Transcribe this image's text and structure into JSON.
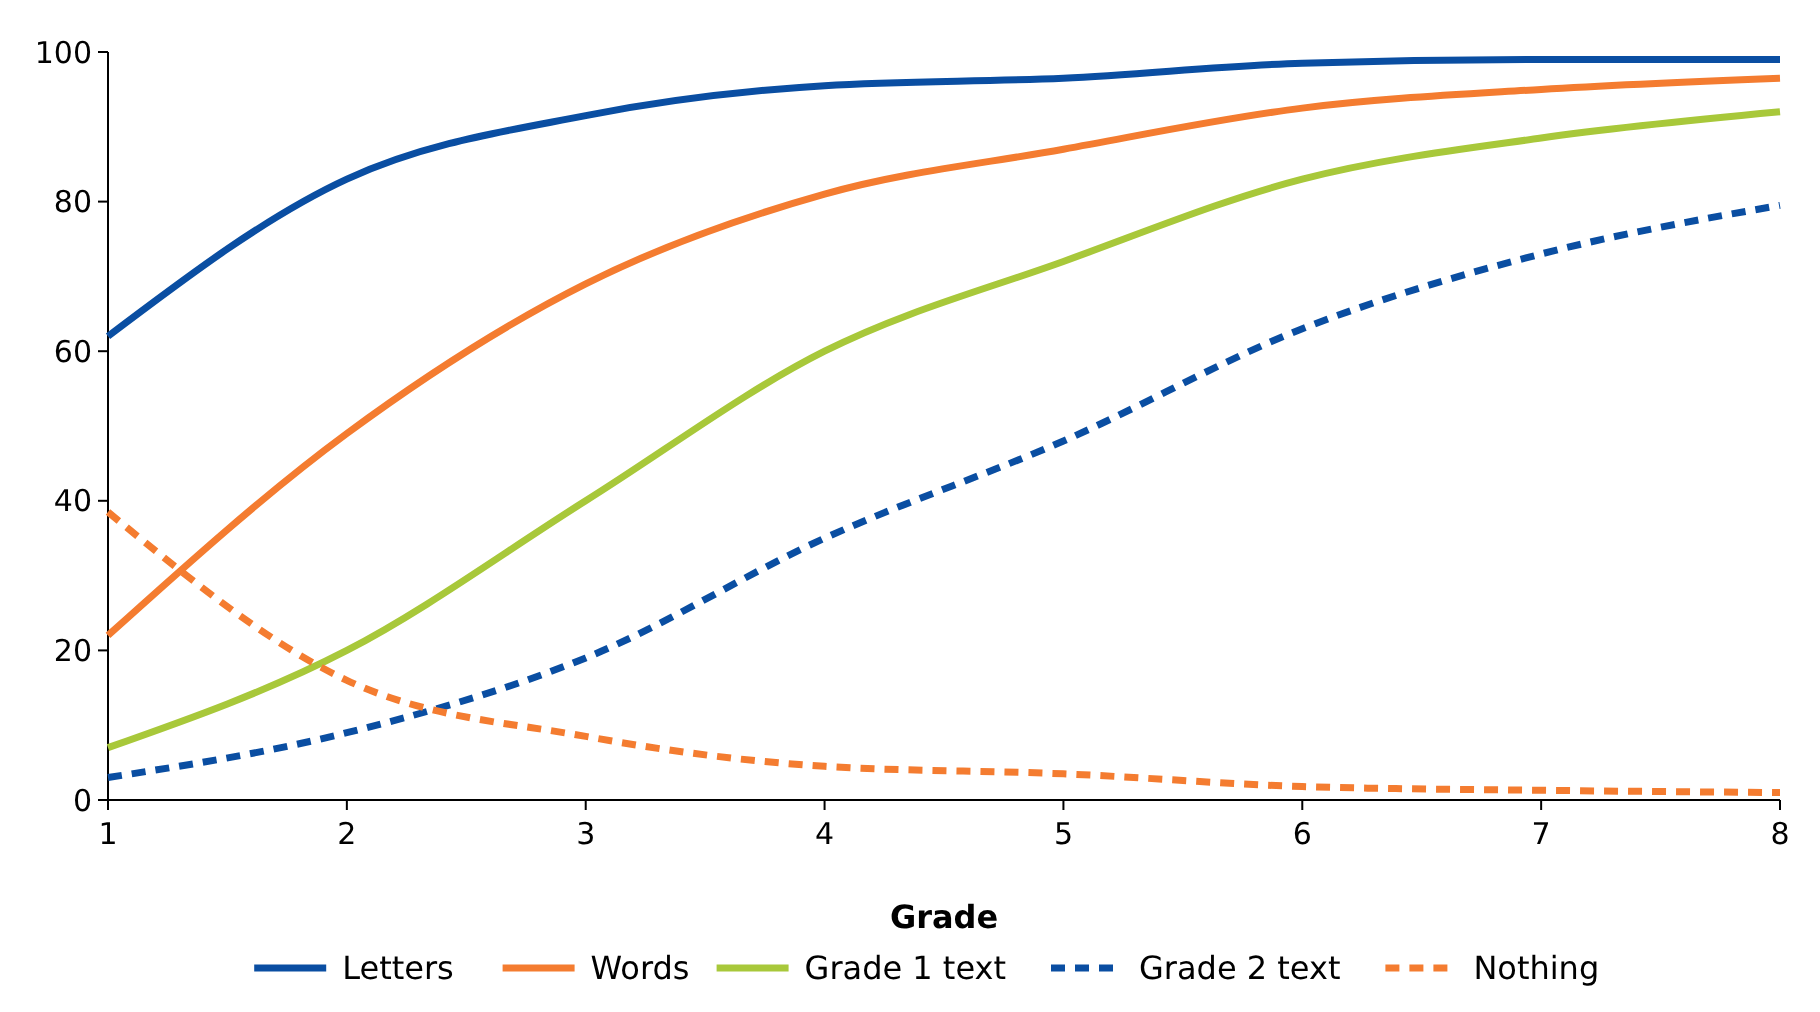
{
  "chart_data": {
    "type": "line",
    "xlabel": "Grade",
    "x": [
      1,
      2,
      3,
      4,
      5,
      6,
      7,
      8
    ],
    "xlim": [
      1,
      8
    ],
    "xticks": [
      1,
      2,
      3,
      4,
      5,
      6,
      7,
      8
    ],
    "ylim": [
      0,
      100
    ],
    "yticks": [
      0,
      20,
      40,
      60,
      80,
      100
    ],
    "legend": "bottom",
    "series": [
      {
        "name": "Letters",
        "color": "#0a4ea2",
        "line_style": "solid",
        "values": [
          62,
          83,
          91.5,
          95.5,
          96.5,
          98.5,
          99,
          99
        ]
      },
      {
        "name": "Words",
        "color": "#f47c30",
        "line_style": "solid",
        "values": [
          22,
          49,
          69,
          81,
          87,
          92.5,
          95,
          96.5
        ]
      },
      {
        "name": "Grade 1 text",
        "color": "#a8c83a",
        "line_style": "solid",
        "values": [
          7,
          20,
          40,
          60,
          72,
          83,
          88.5,
          92
        ]
      },
      {
        "name": "Grade 2 text",
        "color": "#0a4ea2",
        "line_style": "dashed",
        "values": [
          3,
          9,
          19,
          35,
          48,
          63,
          73,
          79.5
        ]
      },
      {
        "name": "Nothing",
        "color": "#f47c30",
        "line_style": "dashed",
        "values": [
          38.5,
          16,
          8.5,
          4.5,
          3.5,
          1.8,
          1.3,
          1
        ]
      }
    ]
  }
}
